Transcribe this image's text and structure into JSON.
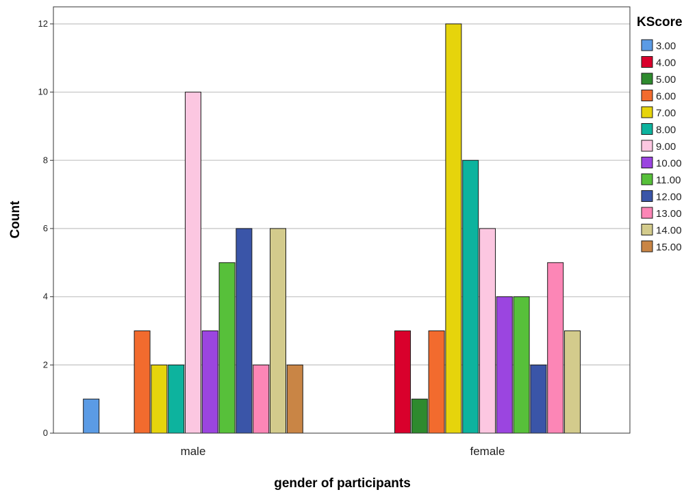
{
  "chart_data": {
    "type": "bar",
    "xlabel": "gender of participants",
    "ylabel": "Count",
    "ylim": [
      0,
      12.5
    ],
    "yticks": [
      0,
      2,
      4,
      6,
      8,
      10,
      12
    ],
    "grid": true,
    "legend_position": "right",
    "legend_title": "KScore",
    "categories": [
      "male",
      "female"
    ],
    "series": [
      {
        "name": "3.00",
        "color": "#5B9BE5",
        "values": [
          1,
          0
        ]
      },
      {
        "name": "4.00",
        "color": "#D9002C",
        "values": [
          0,
          3
        ]
      },
      {
        "name": "5.00",
        "color": "#2E8A2E",
        "values": [
          0,
          1
        ]
      },
      {
        "name": "6.00",
        "color": "#F26B2E",
        "values": [
          3,
          3
        ]
      },
      {
        "name": "7.00",
        "color": "#E6D40C",
        "values": [
          2,
          12
        ]
      },
      {
        "name": "8.00",
        "color": "#0DB39E",
        "values": [
          2,
          8
        ]
      },
      {
        "name": "9.00",
        "color": "#FCC7E1",
        "values": [
          10,
          6
        ]
      },
      {
        "name": "10.00",
        "color": "#9B45E0",
        "values": [
          3,
          4
        ]
      },
      {
        "name": "11.00",
        "color": "#57C03A",
        "values": [
          5,
          4
        ]
      },
      {
        "name": "12.00",
        "color": "#3A55A8",
        "values": [
          6,
          2
        ]
      },
      {
        "name": "13.00",
        "color": "#FC86B6",
        "values": [
          2,
          5
        ]
      },
      {
        "name": "14.00",
        "color": "#D3CB8C",
        "values": [
          6,
          3
        ]
      },
      {
        "name": "15.00",
        "color": "#C98545",
        "values": [
          2,
          0
        ]
      }
    ]
  }
}
